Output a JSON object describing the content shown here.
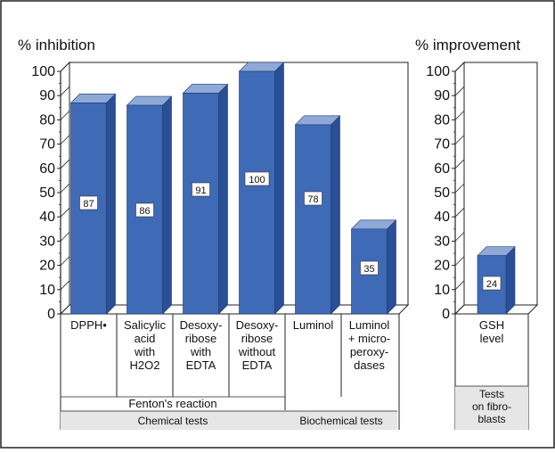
{
  "colors": {
    "bar_front": "#3f6ab6",
    "bar_side": "#294f96",
    "bar_top": "#8ea9d8",
    "wall": "#f2f2f2",
    "band": "#e6e6e6",
    "stroke": "#222222"
  },
  "chart_data": [
    {
      "type": "bar",
      "title": "",
      "ylabel": "% inhibition",
      "ylim": [
        0,
        100
      ],
      "yticks": [
        "0",
        "10",
        "20",
        "30",
        "40",
        "50",
        "60",
        "70",
        "80",
        "90",
        "100"
      ],
      "categories": [
        [
          "DPPH•"
        ],
        [
          "Salicylic",
          "acid",
          "with",
          "H2O2"
        ],
        [
          "Desoxy-",
          "ribose",
          "with",
          "EDTA"
        ],
        [
          "Desoxy-",
          "ribose",
          "without",
          "EDTA"
        ],
        [
          "Luminol"
        ],
        [
          "Luminol",
          "+ micro-",
          "peroxy-",
          "dases"
        ]
      ],
      "values": [
        87,
        86,
        91,
        100,
        78,
        35
      ],
      "data_labels": [
        "87",
        "86",
        "91",
        "100",
        "78",
        "35"
      ],
      "group_labels": [
        "Fenton's reaction"
      ],
      "band_labels": [
        "Chemical tests",
        "Biochemical tests"
      ]
    },
    {
      "type": "bar",
      "title": "",
      "ylabel": "% improvement",
      "ylim": [
        0,
        100
      ],
      "yticks": [
        "0",
        "10",
        "20",
        "30",
        "40",
        "50",
        "60",
        "70",
        "80",
        "90",
        "100"
      ],
      "categories": [
        [
          "GSH",
          "level"
        ]
      ],
      "values": [
        24
      ],
      "data_labels": [
        "24"
      ],
      "band_labels": [
        [
          "Tests",
          "on fibro-",
          "blasts"
        ]
      ]
    }
  ]
}
